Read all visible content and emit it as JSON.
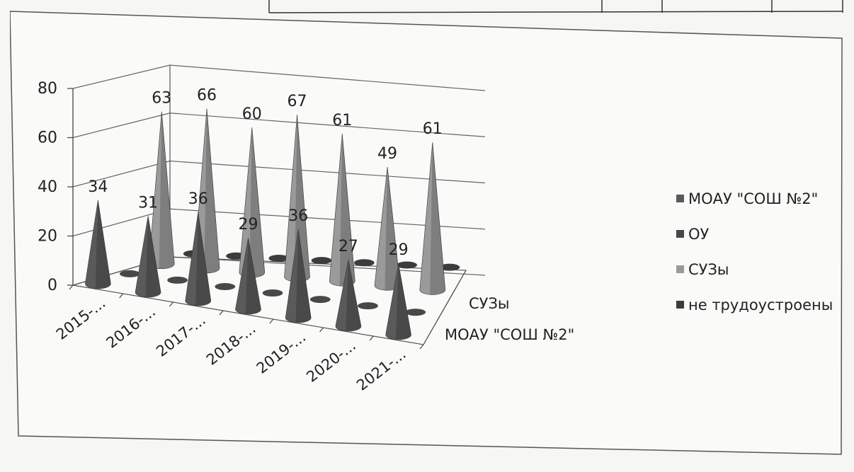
{
  "chart_data": {
    "type": "bar",
    "style": "3d-cone",
    "categories": [
      "2015-...",
      "2016-...",
      "2017-...",
      "2018-...",
      "2019-...",
      "2020-...",
      "2021-..."
    ],
    "depth_axis_labels": [
      "СУЗы",
      "МОАУ \"СОШ №2\""
    ],
    "series": [
      {
        "name": "МОАУ \"СОШ №2\"",
        "values": [
          34,
          31,
          36,
          29,
          36,
          27,
          29
        ],
        "labeled": true,
        "color": "#5a5a5a"
      },
      {
        "name": "ОУ",
        "values": [
          2,
          3,
          2,
          3,
          2,
          2,
          2
        ],
        "labeled": false,
        "color": "#484848"
      },
      {
        "name": "СУЗы",
        "values": [
          63,
          66,
          60,
          67,
          61,
          49,
          61
        ],
        "labeled": true,
        "color": "#9a9a9a"
      },
      {
        "name": "не трудоустроены",
        "values": [
          2,
          2,
          2,
          2,
          2,
          2,
          2
        ],
        "labeled": false,
        "color": "#3c3c3c"
      }
    ],
    "y_ticks": [
      0,
      20,
      40,
      60,
      80
    ],
    "ylim": [
      0,
      80
    ],
    "grid": true,
    "legend": "right"
  }
}
